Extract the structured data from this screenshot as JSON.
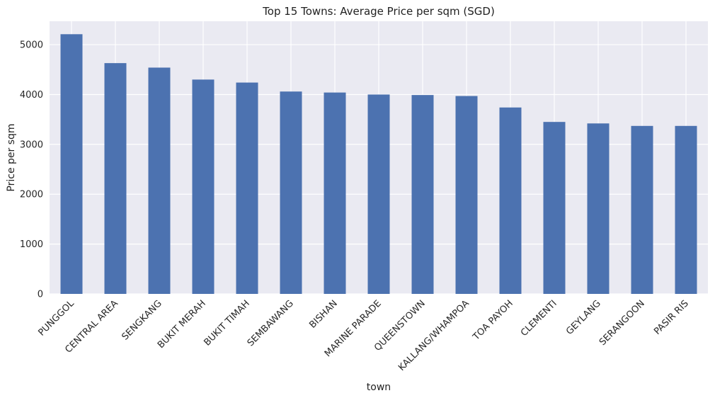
{
  "chart_data": {
    "type": "bar",
    "title": "Top 15 Towns: Average Price per sqm (SGD)",
    "xlabel": "town",
    "ylabel": "Price per sqm",
    "categories": [
      "PUNGGOL",
      "CENTRAL AREA",
      "SENGKANG",
      "BUKIT MERAH",
      "BUKIT TIMAH",
      "SEMBAWANG",
      "BISHAN",
      "MARINE PARADE",
      "QUEENSTOWN",
      "KALLANG/WHAMPOA",
      "TOA PAYOH",
      "CLEMENTI",
      "GEYLANG",
      "SERANGOON",
      "PASIR RIS"
    ],
    "values": [
      5210,
      4630,
      4540,
      4300,
      4240,
      4060,
      4040,
      4000,
      3990,
      3970,
      3740,
      3450,
      3420,
      3370,
      3370
    ],
    "yticks": [
      0,
      1000,
      2000,
      3000,
      4000,
      5000
    ],
    "ylim": [
      0,
      5470
    ],
    "grid": true,
    "colors": {
      "bar": "#4c72b0",
      "plot_bg": "#eaeaf2",
      "grid": "#ffffff"
    }
  }
}
